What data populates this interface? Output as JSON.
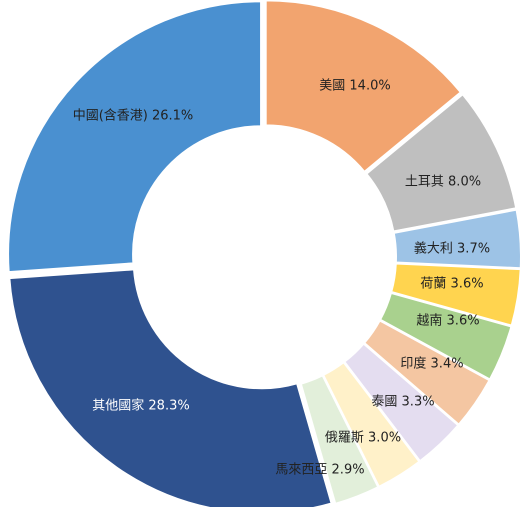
{
  "chart_data": {
    "type": "pie",
    "title": "",
    "style": "donut",
    "slices": [
      {
        "key": "us",
        "label": "美國 14.0%",
        "value": 14.0,
        "color": "#F2A46F",
        "label_color": "#222222"
      },
      {
        "key": "turkey",
        "label": "土耳其 8.0%",
        "value": 8.0,
        "color": "#BFBFBF",
        "label_color": "#222222"
      },
      {
        "key": "italy",
        "label": "義大利 3.7%",
        "value": 3.7,
        "color": "#9DC3E6",
        "label_color": "#222222"
      },
      {
        "key": "netherlands",
        "label": "荷蘭 3.6%",
        "value": 3.6,
        "color": "#FFD44F",
        "label_color": "#222222"
      },
      {
        "key": "vietnam",
        "label": "越南 3.6%",
        "value": 3.6,
        "color": "#A9D18E",
        "label_color": "#222222"
      },
      {
        "key": "india",
        "label": "印度 3.4%",
        "value": 3.4,
        "color": "#F4C6A2",
        "label_color": "#222222"
      },
      {
        "key": "thailand",
        "label": "泰國 3.3%",
        "value": 3.3,
        "color": "#E4DDF0",
        "label_color": "#222222"
      },
      {
        "key": "russia",
        "label": "俄羅斯 3.0%",
        "value": 3.0,
        "color": "#FFF1C9",
        "label_color": "#222222"
      },
      {
        "key": "malaysia",
        "label": "馬來西亞 2.9%",
        "value": 2.9,
        "color": "#E2EFDA",
        "label_color": "#222222"
      },
      {
        "key": "others",
        "label": "其他國家 28.3%",
        "value": 28.3,
        "color": "#2F528F",
        "label_color": "#FFFFFF"
      },
      {
        "key": "china",
        "label": "中國(含香港) 26.1%",
        "value": 26.1,
        "color": "#4A90D0",
        "label_color": "#222222"
      }
    ]
  }
}
